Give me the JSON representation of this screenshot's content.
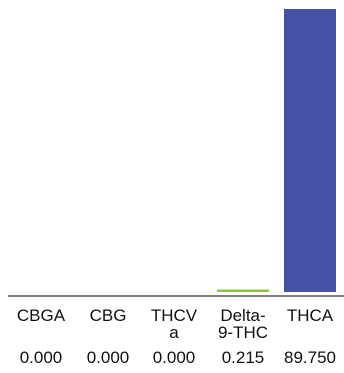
{
  "chart_data": {
    "type": "bar",
    "categories": [
      "CBGA",
      "CBG",
      "THCVa",
      "Delta-9-THC",
      "THCA"
    ],
    "category_labels": [
      [
        "CBGA"
      ],
      [
        "CBG"
      ],
      [
        "THCV",
        "a"
      ],
      [
        "Delta-",
        "9-THC"
      ],
      [
        "THCA"
      ]
    ],
    "values": [
      0.0,
      0.0,
      0.0,
      0.215,
      89.75
    ],
    "value_labels": [
      "0.000",
      "0.000",
      "0.000",
      "0.215",
      "89.750"
    ],
    "bar_colors": [
      "#4452a6",
      "#4452a6",
      "#4452a6",
      "#8cc63f",
      "#4452a6"
    ],
    "ylim": [
      0,
      89.75
    ],
    "grid": false,
    "axis_color": "#333333"
  }
}
